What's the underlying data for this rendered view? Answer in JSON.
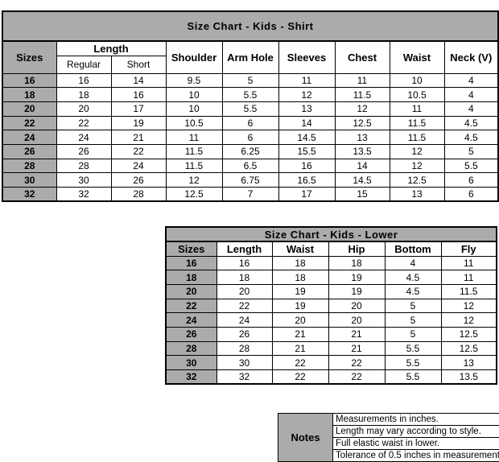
{
  "colors": {
    "cell_gray": "#ababab",
    "border": "#000000",
    "background": "#ffffff",
    "text": "#000000"
  },
  "shirt_table": {
    "title": "Size Chart - Kids - Shirt",
    "sizes_header": "Sizes",
    "length_header": "Length",
    "length_sub": [
      "Regular",
      "Short"
    ],
    "columns": [
      "Shoulder",
      "Arm Hole",
      "Sleeves",
      "Chest",
      "Waist",
      "Neck (V)"
    ],
    "rows": [
      [
        "16",
        "16",
        "14",
        "9.5",
        "5",
        "11",
        "11",
        "10",
        "4"
      ],
      [
        "18",
        "18",
        "16",
        "10",
        "5.5",
        "12",
        "11.5",
        "10.5",
        "4"
      ],
      [
        "20",
        "20",
        "17",
        "10",
        "5.5",
        "13",
        "12",
        "11",
        "4"
      ],
      [
        "22",
        "22",
        "19",
        "10.5",
        "6",
        "14",
        "12.5",
        "11.5",
        "4.5"
      ],
      [
        "24",
        "24",
        "21",
        "11",
        "6",
        "14.5",
        "13",
        "11.5",
        "4.5"
      ],
      [
        "26",
        "26",
        "22",
        "11.5",
        "6.25",
        "15.5",
        "13.5",
        "12",
        "5"
      ],
      [
        "28",
        "28",
        "24",
        "11.5",
        "6.5",
        "16",
        "14",
        "12",
        "5.5"
      ],
      [
        "30",
        "30",
        "26",
        "12",
        "6.75",
        "16.5",
        "14.5",
        "12.5",
        "6"
      ],
      [
        "32",
        "32",
        "28",
        "12.5",
        "7",
        "17",
        "15",
        "13",
        "6"
      ]
    ]
  },
  "lower_table": {
    "title": "Size Chart - Kids - Lower",
    "headers": [
      "Sizes",
      "Length",
      "Waist",
      "Hip",
      "Bottom",
      "Fly"
    ],
    "rows": [
      [
        "16",
        "16",
        "18",
        "18",
        "4",
        "11"
      ],
      [
        "18",
        "18",
        "18",
        "19",
        "4.5",
        "11"
      ],
      [
        "20",
        "20",
        "19",
        "19",
        "4.5",
        "11.5"
      ],
      [
        "22",
        "22",
        "19",
        "20",
        "5",
        "12"
      ],
      [
        "24",
        "24",
        "20",
        "20",
        "5",
        "12"
      ],
      [
        "26",
        "26",
        "21",
        "21",
        "5",
        "12.5"
      ],
      [
        "28",
        "28",
        "21",
        "21",
        "5.5",
        "12.5"
      ],
      [
        "30",
        "30",
        "22",
        "22",
        "5.5",
        "13"
      ],
      [
        "32",
        "32",
        "22",
        "22",
        "5.5",
        "13.5"
      ]
    ]
  },
  "notes": {
    "label": "Notes",
    "items": [
      "Measurements in inches.",
      "Length may vary according to style.",
      "Full elastic waist in lower.",
      "Tolerance of 0.5 inches in measurement"
    ]
  }
}
